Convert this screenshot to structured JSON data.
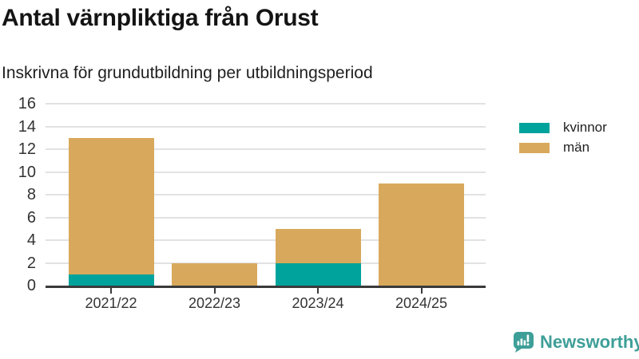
{
  "header": {
    "title": "Antal värnpliktiga från Orust",
    "subtitle": "Inskrivna för grundutbildning per utbildningsperiod"
  },
  "chart_data": {
    "type": "bar",
    "stacked": true,
    "title": "Antal värnpliktiga från Orust",
    "subtitle": "Inskrivna för grundutbildning per utbildningsperiod",
    "categories": [
      "2021/22",
      "2022/23",
      "2023/24",
      "2024/25"
    ],
    "series": [
      {
        "name": "kvinnor",
        "color": "#00a39b",
        "values": [
          1,
          0,
          2,
          0
        ]
      },
      {
        "name": "män",
        "color": "#d8a95c",
        "values": [
          12,
          2,
          3,
          9
        ]
      }
    ],
    "totals": [
      13,
      2,
      5,
      9
    ],
    "xlabel": "",
    "ylabel": "",
    "ylim": [
      0,
      16
    ],
    "ytick_step": 2,
    "yticks": [
      0,
      2,
      4,
      6,
      8,
      10,
      12,
      14,
      16
    ],
    "grid": true,
    "legend_position": "right"
  },
  "colors": {
    "kvinnor": "#00a39b",
    "man": "#d8a95c",
    "axis": "#3a3a3a",
    "gridline": "#e2e2e2",
    "text": "#1f1f1f",
    "brand": "#3e9f98"
  },
  "branding": {
    "logo_text": "Newsworthy",
    "logo_icon": "newsworthy-speech-bubble-bar-chart-icon"
  }
}
